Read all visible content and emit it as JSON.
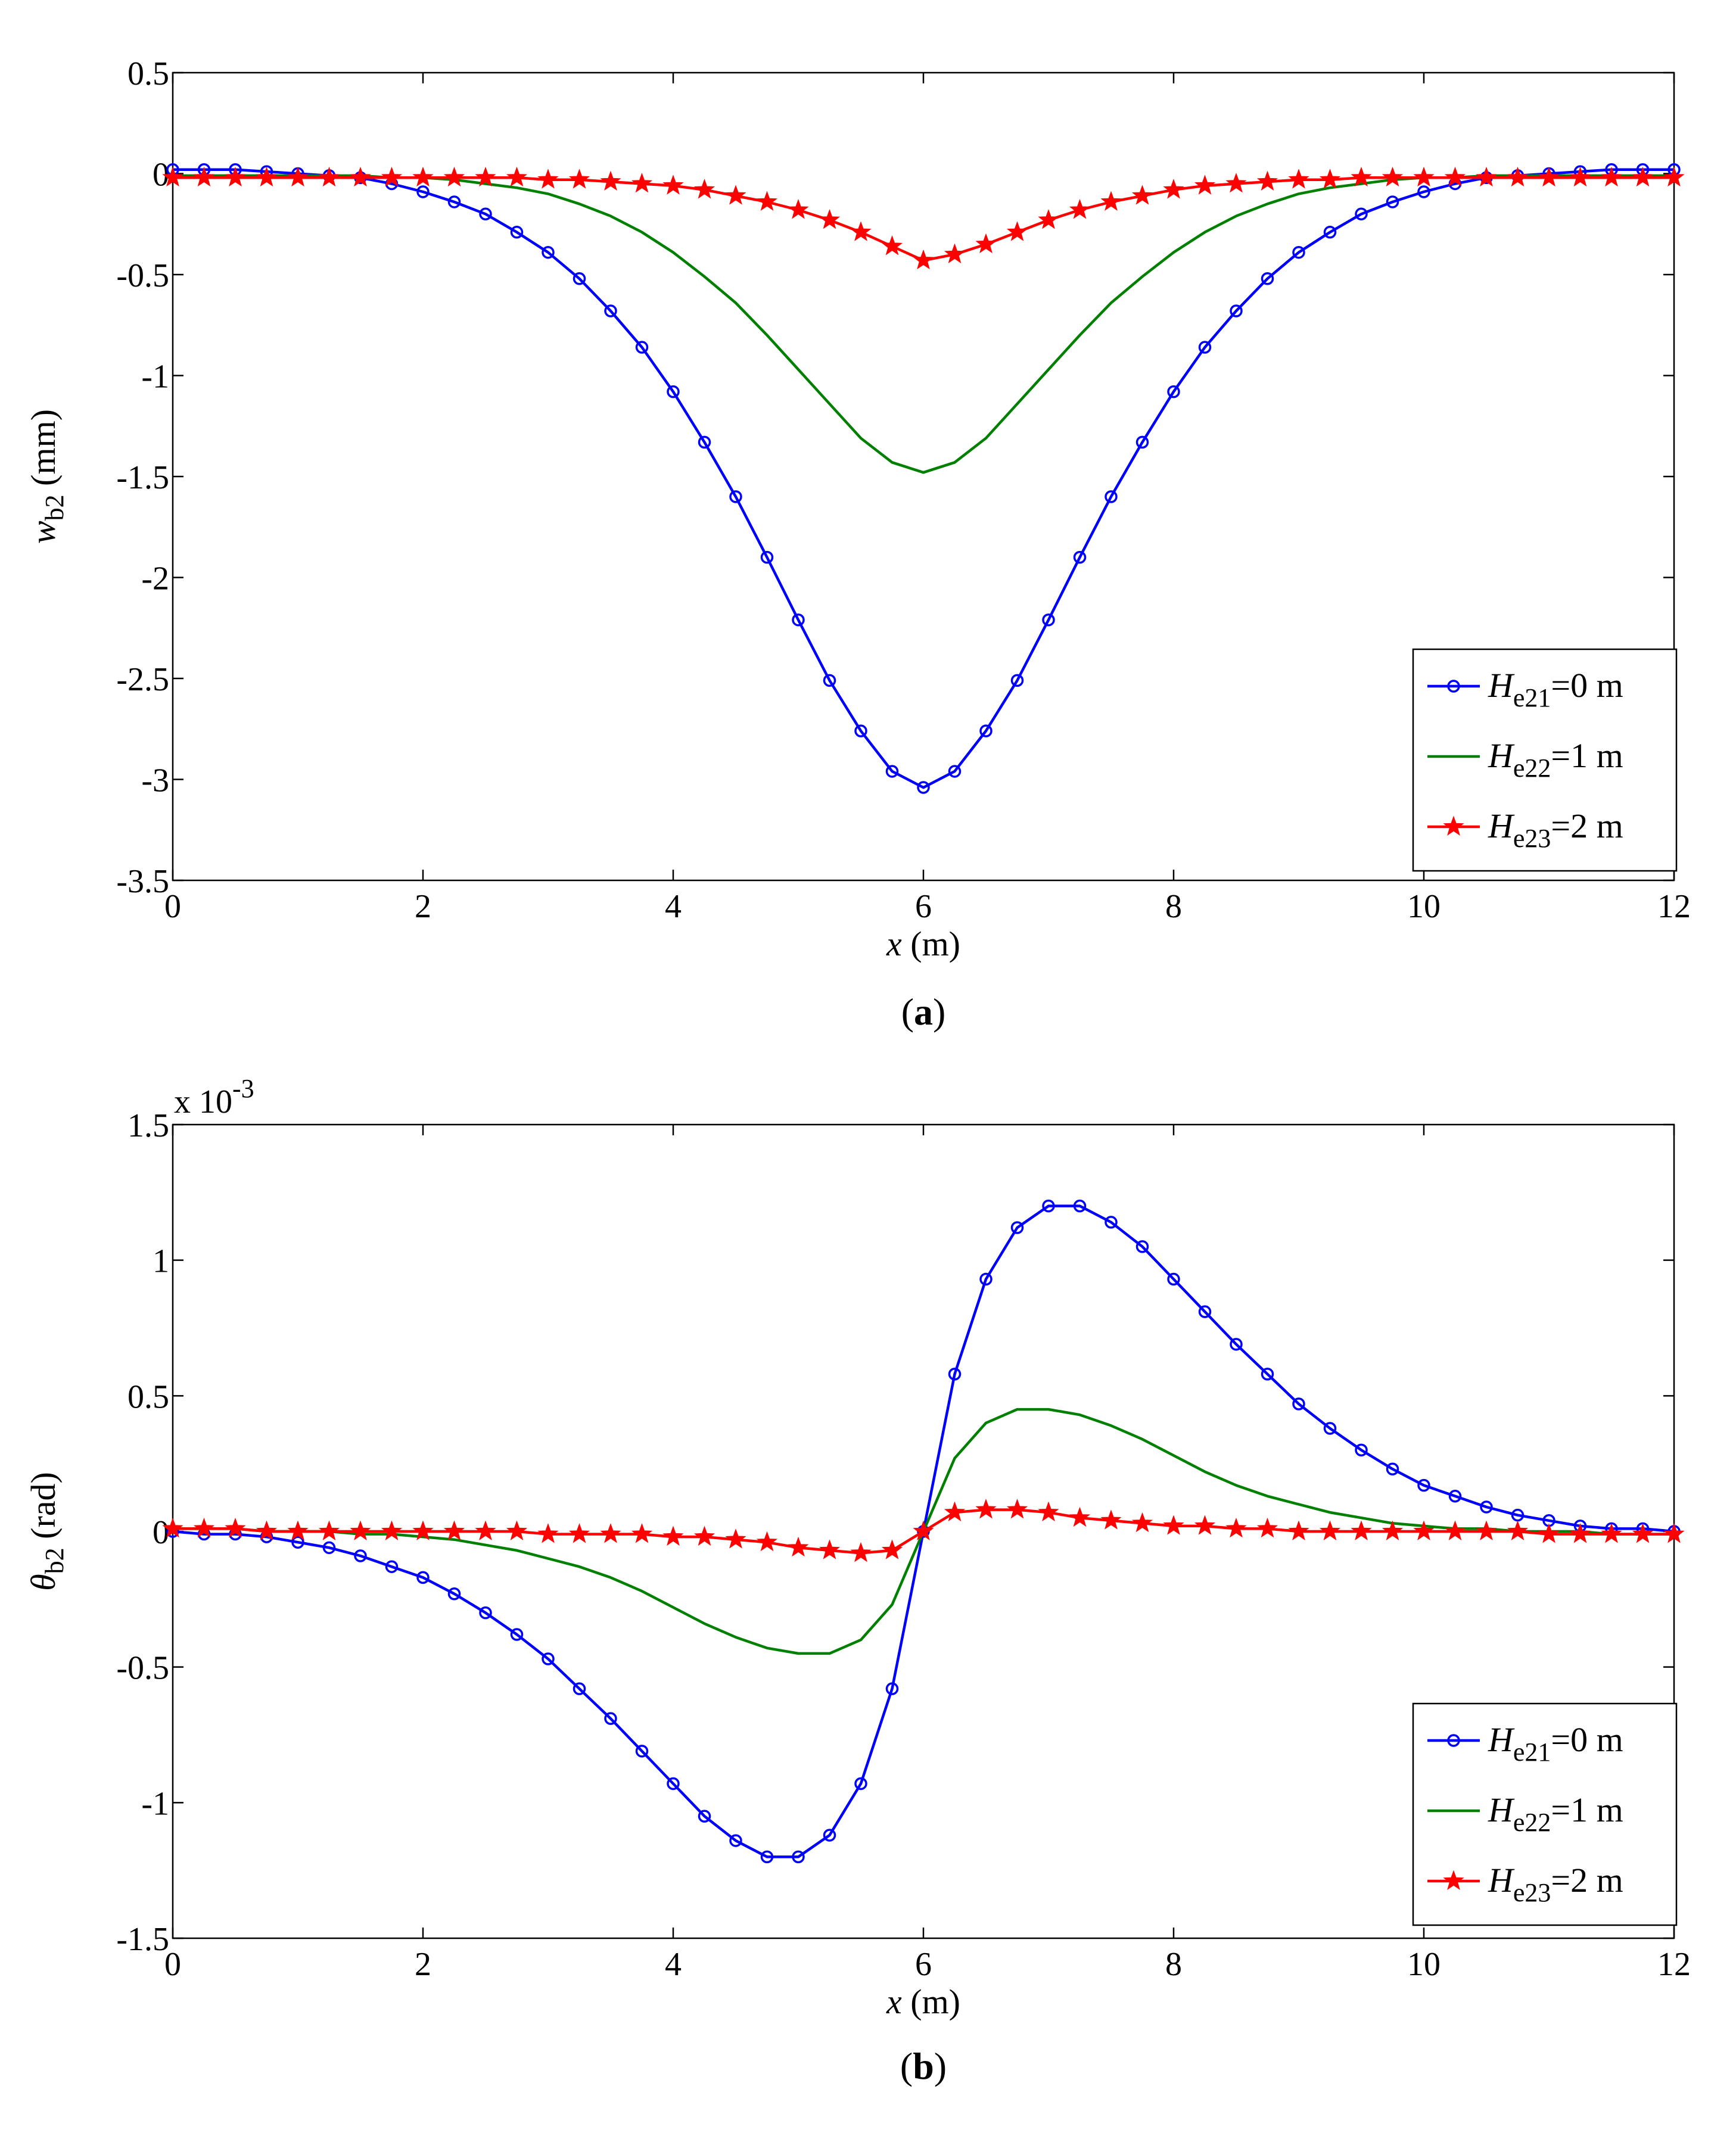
{
  "chart_data": [
    {
      "id": "a",
      "type": "line",
      "caption_letter": "a",
      "ylabel_symbol": "w",
      "ylabel_sub": "b2",
      "ylabel_unit": " (mm)",
      "xlabel_symbol": "x",
      "xlabel_unit": " (m)",
      "xlim": [
        0,
        12
      ],
      "ylim": [
        -3.5,
        0.5
      ],
      "xticks": [
        0,
        2,
        4,
        6,
        8,
        10,
        12
      ],
      "xtick_labels": [
        "0",
        "2",
        "4",
        "6",
        "8",
        "10",
        "12"
      ],
      "yticks": [
        0.5,
        0,
        -0.5,
        -1,
        -1.5,
        -2,
        -2.5,
        -3,
        -3.5
      ],
      "ytick_labels": [
        "0.5",
        "0",
        "-0.5",
        "-1",
        "-1.5",
        "-2",
        "-2.5",
        "-3",
        "-3.5"
      ],
      "exponent_label": "",
      "legend_position": "bottom-right",
      "x": [
        0,
        0.25,
        0.5,
        0.75,
        1,
        1.25,
        1.5,
        1.75,
        2,
        2.25,
        2.5,
        2.75,
        3,
        3.25,
        3.5,
        3.75,
        4,
        4.25,
        4.5,
        4.75,
        5,
        5.25,
        5.5,
        5.75,
        6,
        6.25,
        6.5,
        6.75,
        7,
        7.25,
        7.5,
        7.75,
        8,
        8.25,
        8.5,
        8.75,
        9,
        9.25,
        9.5,
        9.75,
        10,
        10.25,
        10.5,
        10.75,
        11,
        11.25,
        11.5,
        11.75,
        12
      ],
      "series": [
        {
          "legend_symbol": "H",
          "legend_sub": "e21",
          "legend_rest": "=0 m",
          "color": "#0000ff",
          "marker": "circle",
          "values": [
            0.02,
            0.02,
            0.02,
            0.01,
            0.0,
            -0.01,
            -0.02,
            -0.05,
            -0.09,
            -0.14,
            -0.2,
            -0.29,
            -0.39,
            -0.52,
            -0.68,
            -0.86,
            -1.08,
            -1.33,
            -1.6,
            -1.9,
            -2.21,
            -2.51,
            -2.76,
            -2.96,
            -3.04,
            -2.96,
            -2.76,
            -2.51,
            -2.21,
            -1.9,
            -1.6,
            -1.33,
            -1.08,
            -0.86,
            -0.68,
            -0.52,
            -0.39,
            -0.29,
            -0.2,
            -0.14,
            -0.09,
            -0.05,
            -0.02,
            -0.01,
            0.0,
            0.01,
            0.02,
            0.02,
            0.02
          ]
        },
        {
          "legend_symbol": "H",
          "legend_sub": "e22",
          "legend_rest": "=1 m",
          "color": "#008000",
          "marker": "none",
          "values": [
            -0.01,
            -0.01,
            -0.01,
            -0.01,
            -0.01,
            -0.01,
            -0.01,
            -0.02,
            -0.02,
            -0.03,
            -0.05,
            -0.07,
            -0.1,
            -0.15,
            -0.21,
            -0.29,
            -0.39,
            -0.51,
            -0.64,
            -0.8,
            -0.97,
            -1.14,
            -1.31,
            -1.43,
            -1.48,
            -1.43,
            -1.31,
            -1.14,
            -0.97,
            -0.8,
            -0.64,
            -0.51,
            -0.39,
            -0.29,
            -0.21,
            -0.15,
            -0.1,
            -0.07,
            -0.05,
            -0.03,
            -0.02,
            -0.02,
            -0.01,
            -0.01,
            -0.01,
            -0.01,
            -0.01,
            -0.01,
            -0.01
          ]
        },
        {
          "legend_symbol": "H",
          "legend_sub": "e23",
          "legend_rest": "=2 m",
          "color": "#ff0000",
          "marker": "star",
          "values": [
            -0.02,
            -0.02,
            -0.02,
            -0.02,
            -0.02,
            -0.02,
            -0.02,
            -0.02,
            -0.02,
            -0.02,
            -0.02,
            -0.02,
            -0.03,
            -0.03,
            -0.04,
            -0.05,
            -0.06,
            -0.08,
            -0.11,
            -0.14,
            -0.18,
            -0.23,
            -0.29,
            -0.36,
            -0.43,
            -0.4,
            -0.35,
            -0.29,
            -0.23,
            -0.18,
            -0.14,
            -0.11,
            -0.08,
            -0.06,
            -0.05,
            -0.04,
            -0.03,
            -0.03,
            -0.02,
            -0.02,
            -0.02,
            -0.02,
            -0.02,
            -0.02,
            -0.02,
            -0.02,
            -0.02,
            -0.02,
            -0.02
          ]
        }
      ]
    },
    {
      "id": "b",
      "type": "line",
      "caption_letter": "b",
      "ylabel_symbol": "θ",
      "ylabel_sub": "b2",
      "ylabel_unit": " (rad)",
      "xlabel_symbol": "x",
      "xlabel_unit": " (m)",
      "xlim": [
        0,
        12
      ],
      "ylim": [
        -1.5,
        1.5
      ],
      "xticks": [
        0,
        2,
        4,
        6,
        8,
        10,
        12
      ],
      "xtick_labels": [
        "0",
        "2",
        "4",
        "6",
        "8",
        "10",
        "12"
      ],
      "yticks": [
        1.5,
        1,
        0.5,
        0,
        -0.5,
        -1,
        -1.5
      ],
      "ytick_labels": [
        "1.5",
        "1",
        "0.5",
        "0",
        "-0.5",
        "-1",
        "-1.5"
      ],
      "exponent_label": "x 10",
      "exponent_power": "-3",
      "legend_position": "bottom-right",
      "x": [
        0,
        0.25,
        0.5,
        0.75,
        1,
        1.25,
        1.5,
        1.75,
        2,
        2.25,
        2.5,
        2.75,
        3,
        3.25,
        3.5,
        3.75,
        4,
        4.25,
        4.5,
        4.75,
        5,
        5.25,
        5.5,
        5.75,
        6,
        6.25,
        6.5,
        6.75,
        7,
        7.25,
        7.5,
        7.75,
        8,
        8.25,
        8.5,
        8.75,
        9,
        9.25,
        9.5,
        9.75,
        10,
        10.25,
        10.5,
        10.75,
        11,
        11.25,
        11.5,
        11.75,
        12
      ],
      "series": [
        {
          "legend_symbol": "H",
          "legend_sub": "e21",
          "legend_rest": "=0 m",
          "color": "#0000ff",
          "marker": "circle",
          "values": [
            0.0,
            -0.01,
            -0.01,
            -0.02,
            -0.04,
            -0.06,
            -0.09,
            -0.13,
            -0.17,
            -0.23,
            -0.3,
            -0.38,
            -0.47,
            -0.58,
            -0.69,
            -0.81,
            -0.93,
            -1.05,
            -1.14,
            -1.2,
            -1.2,
            -1.12,
            -0.93,
            -0.58,
            0.0,
            0.58,
            0.93,
            1.12,
            1.2,
            1.2,
            1.14,
            1.05,
            0.93,
            0.81,
            0.69,
            0.58,
            0.47,
            0.38,
            0.3,
            0.23,
            0.17,
            0.13,
            0.09,
            0.06,
            0.04,
            0.02,
            0.01,
            0.01,
            0.0
          ]
        },
        {
          "legend_symbol": "H",
          "legend_sub": "e22",
          "legend_rest": "=1 m",
          "color": "#008000",
          "marker": "none",
          "values": [
            0.01,
            0.01,
            0.01,
            0.0,
            0.0,
            0.0,
            -0.01,
            -0.01,
            -0.02,
            -0.03,
            -0.05,
            -0.07,
            -0.1,
            -0.13,
            -0.17,
            -0.22,
            -0.28,
            -0.34,
            -0.39,
            -0.43,
            -0.45,
            -0.45,
            -0.4,
            -0.27,
            0.0,
            0.27,
            0.4,
            0.45,
            0.45,
            0.43,
            0.39,
            0.34,
            0.28,
            0.22,
            0.17,
            0.13,
            0.1,
            0.07,
            0.05,
            0.03,
            0.02,
            0.01,
            0.01,
            0.0,
            0.0,
            0.0,
            -0.01,
            -0.01,
            -0.01
          ]
        },
        {
          "legend_symbol": "H",
          "legend_sub": "e23",
          "legend_rest": "=2 m",
          "color": "#ff0000",
          "marker": "star",
          "values": [
            0.01,
            0.01,
            0.01,
            0.0,
            0.0,
            0.0,
            0.0,
            0.0,
            0.0,
            0.0,
            0.0,
            0.0,
            -0.01,
            -0.01,
            -0.01,
            -0.01,
            -0.02,
            -0.02,
            -0.03,
            -0.04,
            -0.06,
            -0.07,
            -0.08,
            -0.07,
            0.0,
            0.07,
            0.08,
            0.08,
            0.07,
            0.05,
            0.04,
            0.03,
            0.02,
            0.02,
            0.01,
            0.01,
            0.0,
            0.0,
            0.0,
            0.0,
            0.0,
            0.0,
            0.0,
            0.0,
            -0.01,
            -0.01,
            -0.01,
            -0.01,
            -0.01
          ]
        }
      ]
    }
  ]
}
